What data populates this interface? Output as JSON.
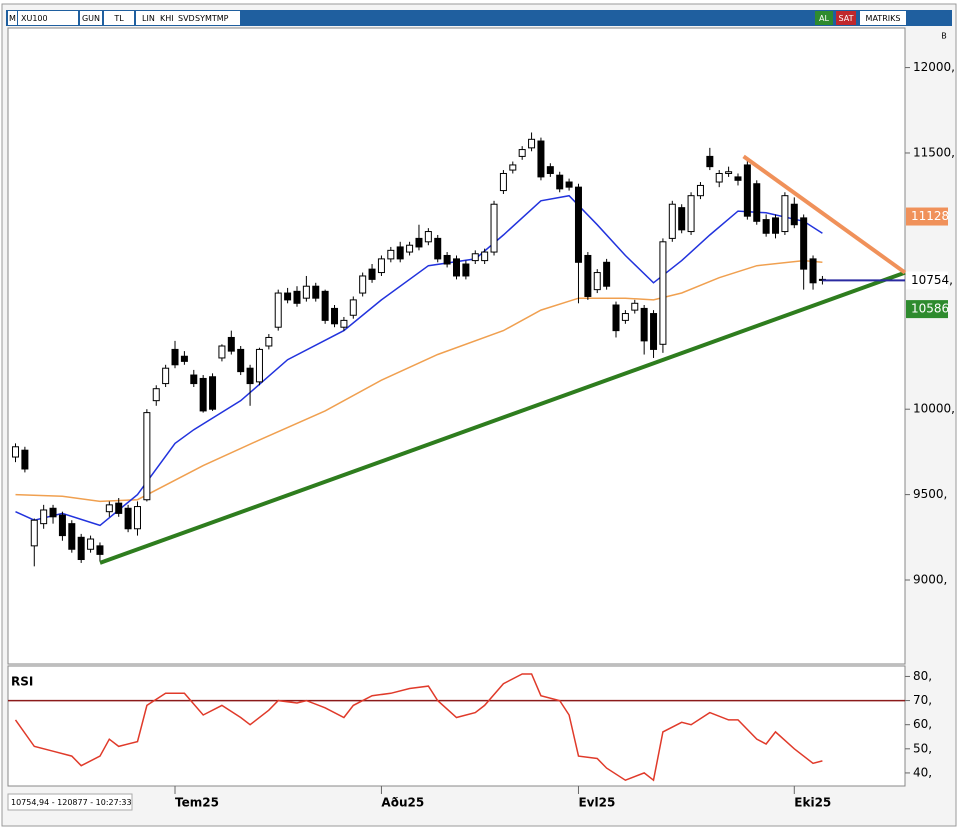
{
  "toolbar": {
    "logo": "M",
    "symbol": "XU100",
    "period": "GUN",
    "currency": "TL",
    "buttons": [
      "LIN",
      "KHI",
      "SVD",
      "SYMTMP"
    ],
    "buy": "AL",
    "sell": "SAT",
    "brand": "MATRIKS",
    "side": "B"
  },
  "status": "10754,94 - 120877 - 10:27:33",
  "chart_data": [
    {
      "type": "candlestick",
      "categories": [
        null,
        null,
        null,
        null,
        null,
        null,
        null,
        null,
        null,
        null,
        null,
        null,
        null,
        null,
        null,
        null,
        null,
        "Tem25",
        null,
        null,
        null,
        null,
        null,
        null,
        null,
        null,
        null,
        null,
        null,
        null,
        null,
        null,
        null,
        null,
        null,
        null,
        null,
        null,
        null,
        "Aðu25",
        null,
        null,
        null,
        null,
        null,
        null,
        null,
        null,
        null,
        null,
        null,
        null,
        null,
        null,
        null,
        null,
        null,
        null,
        null,
        null,
        "Evl25",
        null,
        null,
        null,
        null,
        null,
        null,
        null,
        null,
        null,
        null,
        null,
        null,
        null,
        null,
        null,
        null,
        null,
        null,
        null,
        null,
        null,
        null,
        "Eki25",
        null,
        null,
        null
      ],
      "ohlc": [
        [
          9720,
          9800,
          9690,
          9780
        ],
        [
          9760,
          9780,
          9630,
          9650
        ],
        [
          9200,
          9360,
          9080,
          9350
        ],
        [
          9330,
          9440,
          9300,
          9410
        ],
        [
          9420,
          9440,
          9330,
          9370
        ],
        [
          9380,
          9400,
          9230,
          9260
        ],
        [
          9330,
          9350,
          9160,
          9180
        ],
        [
          9250,
          9270,
          9100,
          9120
        ],
        [
          9180,
          9260,
          9160,
          9240
        ],
        [
          9200,
          9220,
          9110,
          9150
        ],
        [
          9400,
          9460,
          9370,
          9440
        ],
        [
          9450,
          9480,
          9370,
          9390
        ],
        [
          9420,
          9440,
          9280,
          9300
        ],
        [
          9300,
          9460,
          9260,
          9430
        ],
        [
          9470,
          10000,
          9460,
          9980
        ],
        [
          10050,
          10140,
          10020,
          10120
        ],
        [
          10150,
          10260,
          10130,
          10240
        ],
        [
          10350,
          10400,
          10240,
          10260
        ],
        [
          10310,
          10340,
          10260,
          10280
        ],
        [
          10200,
          10230,
          10130,
          10150
        ],
        [
          10180,
          10200,
          9980,
          9990
        ],
        [
          10190,
          10210,
          9990,
          10000
        ],
        [
          10300,
          10380,
          10280,
          10370
        ],
        [
          10420,
          10460,
          10320,
          10340
        ],
        [
          10350,
          10370,
          10200,
          10220
        ],
        [
          10240,
          10260,
          10020,
          10150
        ],
        [
          10160,
          10360,
          10140,
          10350
        ],
        [
          10370,
          10440,
          10350,
          10420
        ],
        [
          10480,
          10700,
          10460,
          10680
        ],
        [
          10680,
          10710,
          10620,
          10640
        ],
        [
          10690,
          10720,
          10600,
          10620
        ],
        [
          10650,
          10780,
          10630,
          10720
        ],
        [
          10720,
          10740,
          10630,
          10650
        ],
        [
          10690,
          10700,
          10500,
          10520
        ],
        [
          10590,
          10610,
          10480,
          10500
        ],
        [
          10480,
          10540,
          10460,
          10520
        ],
        [
          10550,
          10660,
          10530,
          10640
        ],
        [
          10680,
          10800,
          10660,
          10780
        ],
        [
          10820,
          10850,
          10740,
          10760
        ],
        [
          10800,
          10900,
          10780,
          10880
        ],
        [
          10880,
          10950,
          10860,
          10930
        ],
        [
          10950,
          10980,
          10860,
          10880
        ],
        [
          10920,
          10980,
          10900,
          10960
        ],
        [
          11000,
          11080,
          10930,
          10950
        ],
        [
          10980,
          11060,
          10960,
          11040
        ],
        [
          11000,
          11020,
          10860,
          10880
        ],
        [
          10900,
          10920,
          10830,
          10850
        ],
        [
          10880,
          10900,
          10760,
          10780
        ],
        [
          10850,
          10870,
          10760,
          10780
        ],
        [
          10870,
          10930,
          10850,
          10910
        ],
        [
          10870,
          10940,
          10850,
          10920
        ],
        [
          10920,
          11220,
          10900,
          11200
        ],
        [
          11280,
          11400,
          11260,
          11380
        ],
        [
          11400,
          11450,
          11380,
          11430
        ],
        [
          11480,
          11540,
          11460,
          11520
        ],
        [
          11530,
          11620,
          11510,
          11580
        ],
        [
          11570,
          11590,
          11340,
          11360
        ],
        [
          11420,
          11440,
          11360,
          11380
        ],
        [
          11370,
          11390,
          11270,
          11290
        ],
        [
          11330,
          11350,
          11280,
          11300
        ],
        [
          11300,
          11320,
          10620,
          10860
        ],
        [
          10900,
          10920,
          10640,
          10660
        ],
        [
          10700,
          10820,
          10680,
          10800
        ],
        [
          10860,
          10880,
          10700,
          10720
        ],
        [
          10610,
          10630,
          10420,
          10460
        ],
        [
          10520,
          10580,
          10500,
          10560
        ],
        [
          10580,
          10640,
          10560,
          10620
        ],
        [
          10590,
          10610,
          10320,
          10400
        ],
        [
          10560,
          10580,
          10300,
          10350
        ],
        [
          10380,
          11000,
          10330,
          10980
        ],
        [
          11000,
          11220,
          10980,
          11200
        ],
        [
          11180,
          11200,
          11030,
          11050
        ],
        [
          11040,
          11270,
          11020,
          11250
        ],
        [
          11250,
          11330,
          11230,
          11310
        ],
        [
          11480,
          11530,
          11400,
          11420
        ],
        [
          11330,
          11400,
          11300,
          11380
        ],
        [
          11380,
          11420,
          11360,
          11390
        ],
        [
          11360,
          11380,
          11310,
          11340
        ],
        [
          11430,
          11470,
          11110,
          11130
        ],
        [
          11320,
          11340,
          11080,
          11100
        ],
        [
          11110,
          11140,
          11010,
          11030
        ],
        [
          11120,
          11140,
          11000,
          11030
        ],
        [
          11040,
          11270,
          11020,
          11250
        ],
        [
          11200,
          11240,
          11060,
          11080
        ],
        [
          11120,
          11140,
          10700,
          10820
        ],
        [
          10880,
          10900,
          10700,
          10740
        ],
        [
          10760,
          10780,
          10730,
          10754
        ]
      ],
      "xlim": [
        -0.8,
        94.8
      ],
      "ylim": [
        8520,
        12220
      ],
      "yticks": [
        {
          "value": 9000,
          "label": "9000,"
        },
        {
          "value": 9500,
          "label": "9500,"
        },
        {
          "value": 10000,
          "label": "10000,"
        },
        {
          "value": 11500,
          "label": "11500,"
        },
        {
          "value": 12000,
          "label": "12000,"
        }
      ],
      "overlays": [
        {
          "color": "#f0a050",
          "x": [
            0,
            5,
            9,
            13,
            20,
            26,
            33,
            39,
            45,
            52,
            56,
            60,
            65,
            68,
            71,
            75,
            79,
            84,
            86
          ],
          "values": [
            9500,
            9490,
            9460,
            9470,
            9670,
            9820,
            9990,
            10170,
            10320,
            10460,
            10580,
            10650,
            10650,
            10640,
            10680,
            10770,
            10840,
            10870,
            10860
          ]
        },
        {
          "color": "#2233dd",
          "x": [
            0,
            2,
            5,
            9,
            13,
            17,
            19,
            24,
            29,
            35,
            39,
            44,
            49,
            52,
            56,
            59,
            62,
            65,
            68,
            71,
            74,
            77,
            80,
            84,
            86
          ],
          "values": [
            9400,
            9350,
            9390,
            9320,
            9500,
            9800,
            9880,
            10050,
            10290,
            10460,
            10640,
            10840,
            10880,
            11020,
            11220,
            11250,
            11080,
            10900,
            10740,
            10870,
            11020,
            11160,
            11150,
            11100,
            11030
          ]
        }
      ],
      "trendlines": [
        {
          "color": "#2e7d1e",
          "width": 4,
          "x": [
            9,
            94.8
          ],
          "values": [
            9100,
            10800
          ]
        },
        {
          "color": "#f0915a",
          "width": 4,
          "x": [
            77.6,
            94.8
          ],
          "values": [
            11480,
            10800
          ]
        },
        {
          "color": "#2a2aa0",
          "width": 2,
          "x": [
            86,
            94.8
          ],
          "values": [
            10754,
            10754
          ]
        }
      ],
      "price_tags": [
        {
          "value": 11128,
          "label": "11128",
          "color": "#f0915a",
          "text_color": "#ffffff"
        },
        {
          "value": 10754,
          "label": "10754,",
          "color": "#ffffff",
          "text_color": "#000000"
        },
        {
          "value": 10586,
          "label": "10586",
          "color": "#2e8b2e",
          "text_color": "#ffffff"
        }
      ]
    },
    {
      "type": "line",
      "label": "RSI",
      "xlim": [
        -0.8,
        94.8
      ],
      "ylim": [
        35,
        83.5
      ],
      "yticks": [
        {
          "value": 40,
          "label": "40,"
        },
        {
          "value": 50,
          "label": "50,"
        },
        {
          "value": 60,
          "label": "60,"
        },
        {
          "value": 70,
          "label": "70,"
        },
        {
          "value": 80,
          "label": "80,"
        }
      ],
      "levels": [
        {
          "value": 70,
          "color": "#8b1a1a"
        }
      ],
      "series": [
        {
          "color": "#e03a2a",
          "x": [
            0,
            2,
            4,
            6,
            7,
            9,
            10,
            11,
            13,
            14,
            16,
            18,
            20,
            22,
            24,
            25,
            27,
            28,
            30,
            31,
            33,
            35,
            36,
            38,
            40,
            42,
            44,
            45,
            47,
            49,
            50,
            52,
            54,
            55,
            56,
            58,
            59,
            60,
            62,
            63,
            65,
            67,
            68,
            69,
            71,
            72,
            74,
            76,
            77,
            79,
            80,
            81,
            83,
            85,
            86
          ],
          "values": [
            62,
            51,
            49,
            47,
            43,
            47,
            54,
            51,
            53,
            68,
            73,
            73,
            64,
            68,
            63,
            60,
            66,
            70,
            69,
            70,
            67,
            63,
            68,
            72,
            73,
            75,
            76,
            70,
            63,
            65,
            68,
            77,
            81,
            81,
            72,
            70,
            64,
            47,
            46,
            42,
            37,
            40,
            37,
            57,
            61,
            60,
            65,
            62,
            62,
            54,
            52,
            57,
            50,
            44,
            45
          ]
        }
      ]
    }
  ]
}
